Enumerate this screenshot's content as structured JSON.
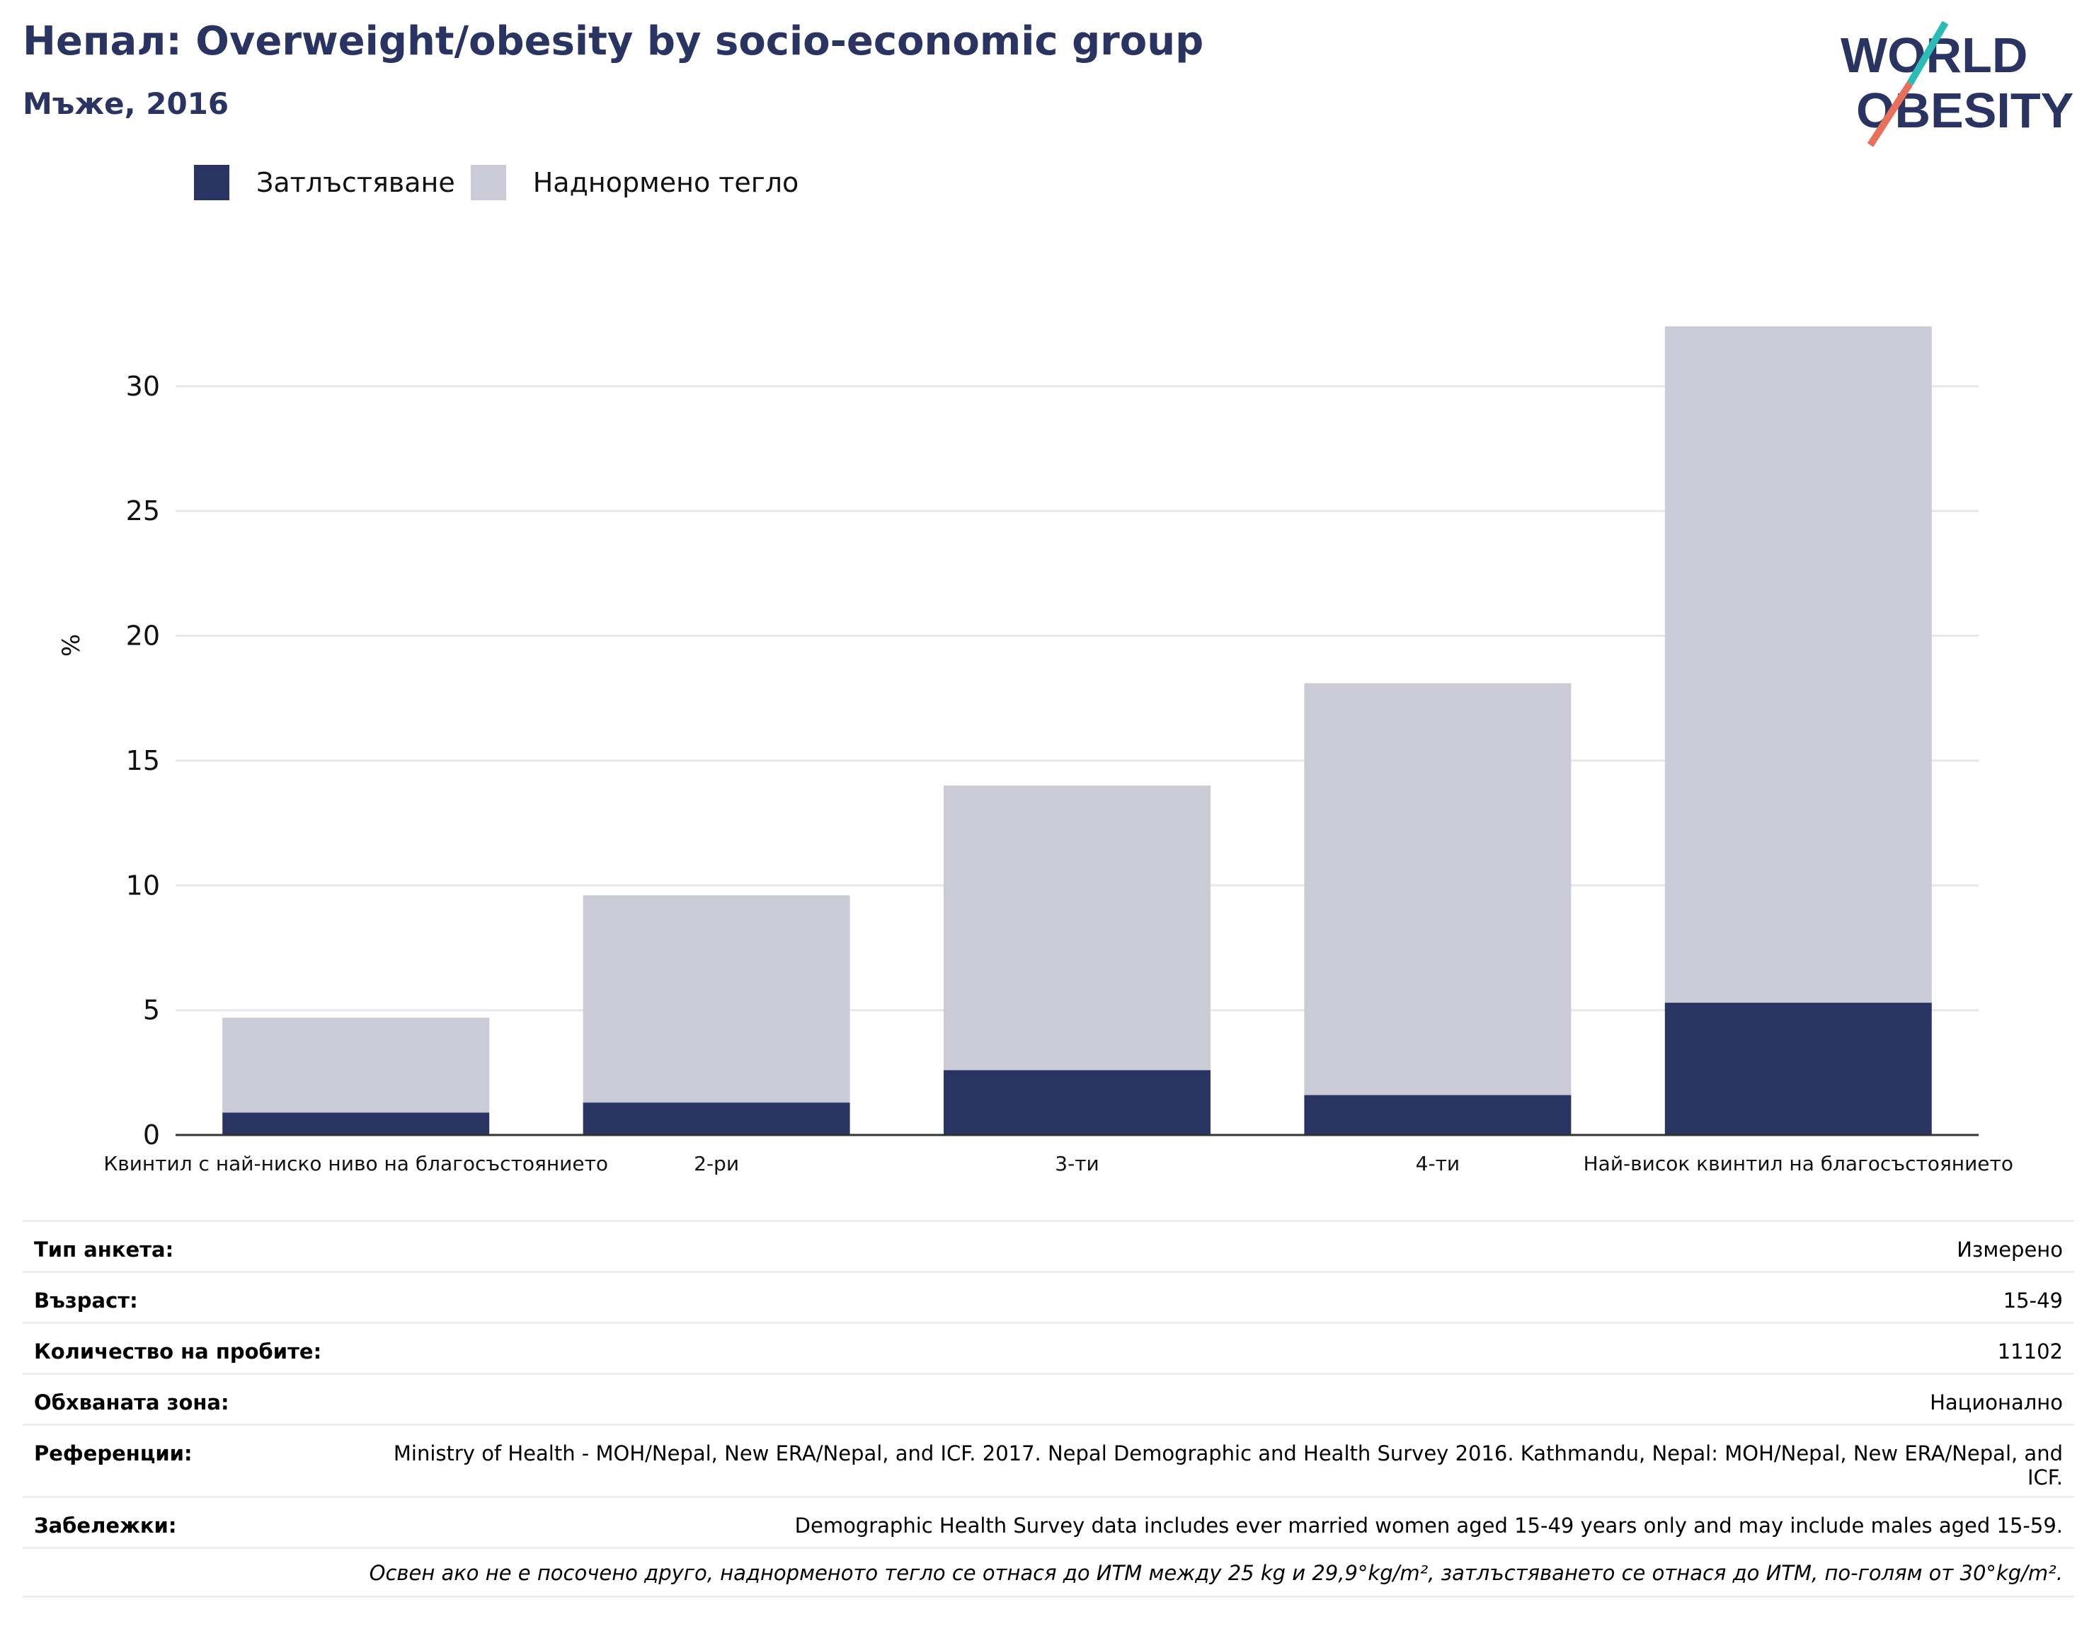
{
  "header": {
    "title": "Непал: Overweight/obesity by socio-economic group",
    "subtitle": "Мъже, 2016"
  },
  "logo": {
    "line1": "WORLD",
    "line2": "OBESITY",
    "colors": {
      "text": "#293462",
      "teal": "#2bbcb8",
      "coral": "#e8705a"
    }
  },
  "legend": [
    {
      "label": "Затлъстяване",
      "color": "#293462"
    },
    {
      "label": "Наднормено тегло",
      "color": "#cacbd6"
    }
  ],
  "chart_data": {
    "type": "bar",
    "stacked": true,
    "categories": [
      "Квинтил с най-ниско ниво на благосъстоянието",
      "2-ри",
      "3-ти",
      "4-ти",
      "Най-висок квинтил на благосъстоянието"
    ],
    "series": [
      {
        "name": "Затлъстяване",
        "color": "#293462",
        "values": [
          0.9,
          1.3,
          2.6,
          1.6,
          5.3
        ]
      },
      {
        "name": "Наднормено тегло",
        "color": "#cacbd6",
        "values": [
          3.8,
          8.3,
          11.4,
          16.5,
          27.1
        ]
      }
    ],
    "ylabel": "%",
    "ylim": [
      0,
      33
    ],
    "yticks": [
      0,
      5,
      10,
      15,
      20,
      25,
      30
    ],
    "grid": true
  },
  "info": {
    "rows": [
      {
        "label": "Тип анкета:",
        "value": "Измерено"
      },
      {
        "label": "Възраст:",
        "value": "15-49"
      },
      {
        "label": "Количество на пробите:",
        "value": "11102"
      },
      {
        "label": "Обхваната зона:",
        "value": "Национално"
      },
      {
        "label": "Референции:",
        "value": "Ministry of Health - MOH/Nepal, New ERA/Nepal, and ICF. 2017. Nepal Demographic and Health Survey 2016. Kathmandu, Nepal: MOH/Nepal, New ERA/Nepal, and ICF."
      },
      {
        "label": "Забележки:",
        "value": "Demographic Health Survey data includes ever married women aged 15-49 years only and may include males aged 15-59."
      }
    ],
    "footnote": "Освен ако не е посочено друго, наднорменото тегло се отнася до ИТМ между 25 kg и 29,9°kg/m², затлъстяването се отнася до ИТМ, по-голям от 30°kg/m²."
  }
}
